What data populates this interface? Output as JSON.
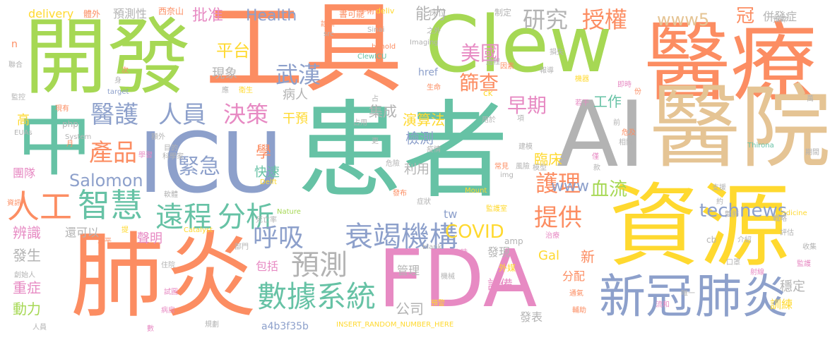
{
  "palette": {
    "green": "#66c2a5",
    "orange": "#fc8d62",
    "blue": "#8da0cb",
    "pink": "#e78ac3",
    "lime": "#a6d854",
    "yellow": "#ffd92f",
    "tan": "#e5c494",
    "grey": "#b3b3b3"
  },
  "words": [
    "開發",
    "工具",
    "Clew",
    "醫療",
    "ICU",
    "患者",
    "AI",
    "醫院",
    "中",
    "肺炎",
    "FDA",
    "資源",
    "新冠",
    "肺炎",
    "人工",
    "智慧",
    "數據",
    "系統",
    "衰竭",
    "機構",
    "遠程",
    "分析",
    "預測",
    "呼吸",
    "研究",
    "授權",
    "醫護",
    "人員",
    "決策",
    "產品",
    "緊急",
    "武漢",
    "平台",
    "美國",
    "篩查",
    "早期",
    "COVID",
    "提供",
    "護理",
    "血流",
    "technews",
    "www5",
    "www",
    "Health",
    "Salomon",
    "批准",
    "能力",
    "冠",
    "併發症",
    "預測性",
    "delivery",
    "西奈山",
    "書可能",
    "手術",
    "deliv",
    "床位",
    "制定",
    "體外",
    "現象",
    "病人",
    "工作",
    "臨床",
    "集成",
    "演算法",
    "干預",
    "檢測",
    "學",
    "快速",
    "利用",
    "團隊",
    "辨識",
    "還可以",
    "發生",
    "聲明",
    "重症",
    "動力",
    "包括",
    "管理",
    "設備",
    "公司",
    "發表",
    "訓練",
    "穩定",
    "分配",
    "新",
    "Gal",
    "tw",
    "發現",
    "外媒",
    "href",
    "ck",
    "amp",
    "cb",
    "php",
    "高",
    "EUAs",
    "現有",
    "監控",
    "聯合",
    "n",
    "a4b3f35b",
    "INSERT_RANDOM_NUMBER_HERE",
    "Mount",
    "監護室",
    "Nature",
    "Catalyst",
    "Delft",
    "Imaging",
    "behold",
    "ClewICU",
    "Sinai",
    "src",
    "blank",
    "target",
    "System",
    "Thirona",
    "Medicine",
    "img",
    "危險",
    "疫情",
    "科學家",
    "學習",
    "常見",
    "風險",
    "模型",
    "症狀",
    "發布",
    "死亡率",
    "部門",
    "創始人",
    "住院",
    "試圖",
    "病房",
    "規劃",
    "人員",
    "數",
    "資訊",
    "水平",
    "提",
    "軟體",
    "攻擊",
    "病毒",
    "建模",
    "小時",
    "機械",
    "預警",
    "通氣",
    "輔助",
    "流和",
    "唯一",
    "射線",
    "雙肺",
    "戰略",
    "評估",
    "收集",
    "監護",
    "口罩",
    "介紹",
    "支援",
    "約",
    "近",
    "治療",
    "家",
    "項",
    "用於",
    "占用",
    "更",
    "占",
    "因素",
    "報導",
    "過程",
    "之外",
    "生命",
    "診斷",
    "額外",
    "目的",
    "月",
    "身",
    "次",
    "應",
    "衛生",
    "成像",
    "預算",
    "期間",
    "萬",
    "相關",
    "前",
    "危及",
    "份",
    "若干",
    "機器",
    "損失",
    "即時",
    "款",
    "僅",
    "非",
    "迄"
  ]
}
